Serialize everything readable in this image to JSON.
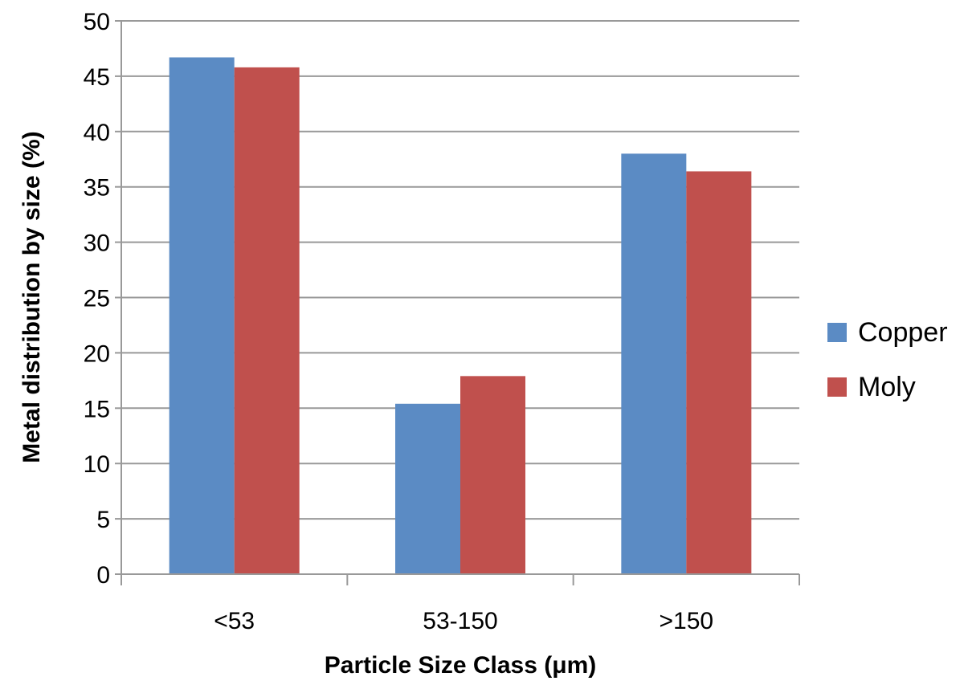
{
  "chart_data": {
    "type": "bar",
    "title": "",
    "xlabel": "Particle Size Class (μm)",
    "ylabel": "Metal distribution by size (%)",
    "categories": [
      "<53",
      "53-150",
      ">150"
    ],
    "series": [
      {
        "name": "Copper",
        "color": "#5B8BC4",
        "values": [
          46.7,
          15.4,
          38.0
        ]
      },
      {
        "name": "Moly",
        "color": "#C0504D",
        "values": [
          45.8,
          17.9,
          36.4
        ]
      }
    ],
    "ylim": [
      0,
      50
    ],
    "yticks": [
      0,
      5,
      10,
      15,
      20,
      25,
      30,
      35,
      40,
      45,
      50
    ],
    "grid": true,
    "legend_position": "right"
  },
  "legend": {
    "items": [
      {
        "label": "Copper",
        "color": "#5B8BC4"
      },
      {
        "label": "Moly",
        "color": "#C0504D"
      }
    ]
  }
}
